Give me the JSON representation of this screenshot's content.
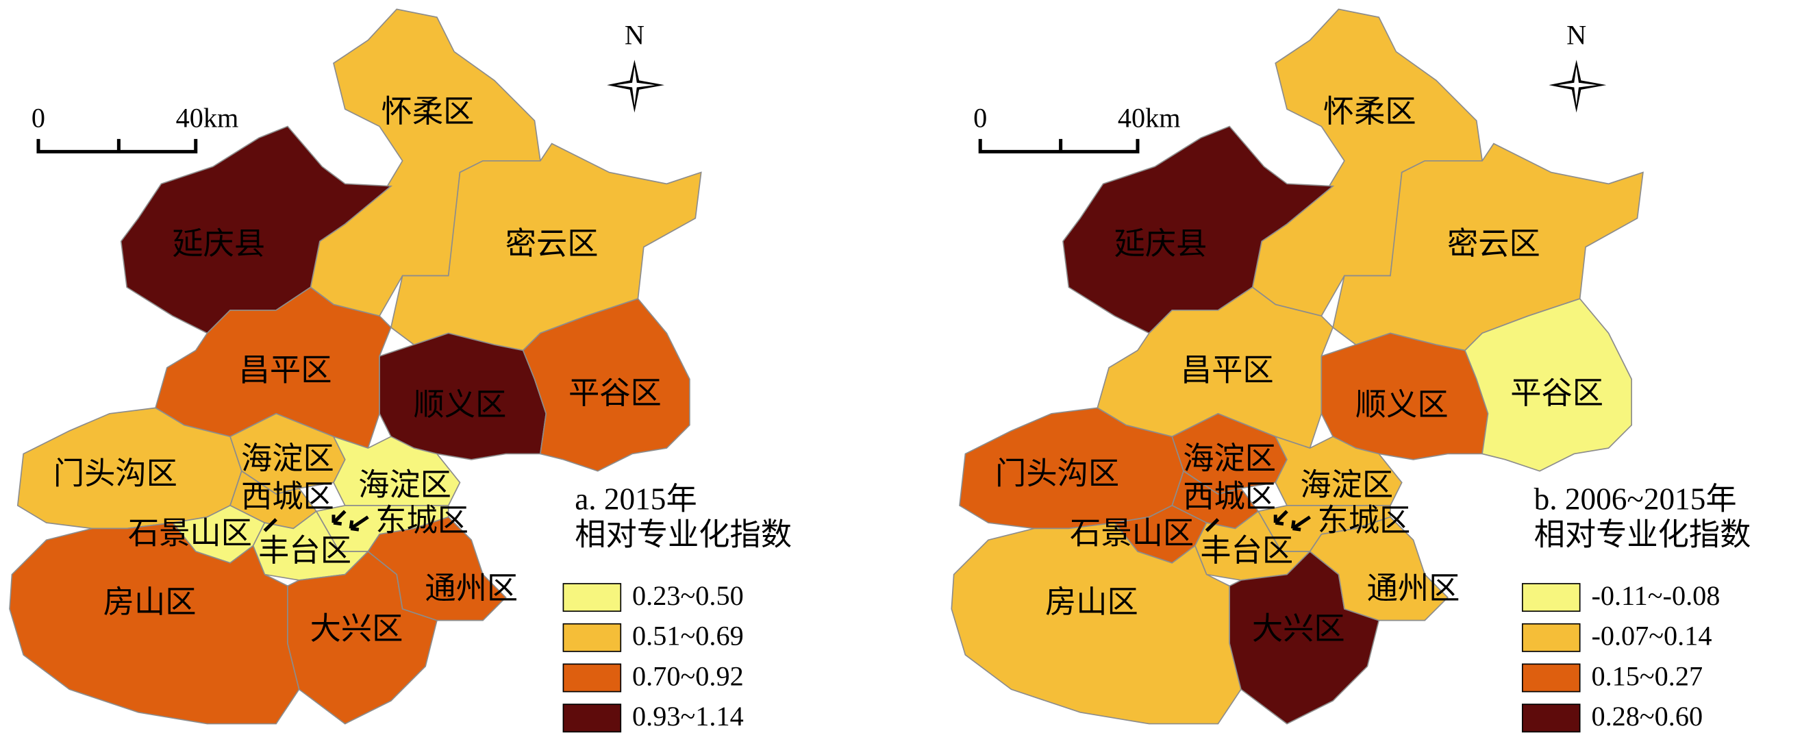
{
  "maps": [
    {
      "scale_bar": {
        "start": "0",
        "end": "40km"
      },
      "north": "N",
      "districts": [
        {
          "label": "怀柔区",
          "color": "#F5BE38"
        },
        {
          "label": "延庆县",
          "color": "#5E0B0B"
        },
        {
          "label": "密云区",
          "color": "#F5BE38"
        },
        {
          "label": "昌平区",
          "color": "#DE5F0F"
        },
        {
          "label": "顺义区",
          "color": "#5E0B0B"
        },
        {
          "label": "平谷区",
          "color": "#DE5F0F"
        },
        {
          "label": "门头沟区",
          "color": "#F5BE38"
        },
        {
          "label": "海淀区",
          "color": "#F5BE38"
        },
        {
          "label": "海淀区",
          "color": "#F7F67E"
        },
        {
          "label": "西城区",
          "color": "#F5BE38"
        },
        {
          "label": "东城区",
          "color": "#F7F67E"
        },
        {
          "label": "石景山区",
          "color": "#F7F67E"
        },
        {
          "label": "丰台区",
          "color": "#F7F67E"
        },
        {
          "label": "房山区",
          "color": "#DE5F0F"
        },
        {
          "label": "大兴区",
          "color": "#DE5F0F"
        },
        {
          "label": "通州区",
          "color": "#DE5F0F"
        }
      ],
      "legend": {
        "title": [
          "a. 2015年",
          "相对专业化指数"
        ],
        "items": [
          {
            "label": "0.23~0.50",
            "color": "#F7F67E"
          },
          {
            "label": "0.51~0.69",
            "color": "#F5BE38"
          },
          {
            "label": "0.70~0.92",
            "color": "#DE5F0F"
          },
          {
            "label": "0.93~1.14",
            "color": "#5E0B0B"
          }
        ]
      }
    },
    {
      "scale_bar": {
        "start": "0",
        "end": "40km"
      },
      "north": "N",
      "districts": [
        {
          "label": "怀柔区",
          "color": "#F5BE38"
        },
        {
          "label": "延庆县",
          "color": "#5E0B0B"
        },
        {
          "label": "密云区",
          "color": "#F5BE38"
        },
        {
          "label": "昌平区",
          "color": "#F5BE38"
        },
        {
          "label": "顺义区",
          "color": "#DE5F0F"
        },
        {
          "label": "平谷区",
          "color": "#F7F67E"
        },
        {
          "label": "门头沟区",
          "color": "#DE5F0F"
        },
        {
          "label": "海淀区",
          "color": "#DE5F0F"
        },
        {
          "label": "海淀区",
          "color": "#F5BE38"
        },
        {
          "label": "西城区",
          "color": "#DE5F0F"
        },
        {
          "label": "东城区",
          "color": "#F5BE38"
        },
        {
          "label": "石景山区",
          "color": "#DE5F0F"
        },
        {
          "label": "丰台区",
          "color": "#F5BE38"
        },
        {
          "label": "房山区",
          "color": "#F5BE38"
        },
        {
          "label": "大兴区",
          "color": "#5E0B0B"
        },
        {
          "label": "通州区",
          "color": "#F5BE38"
        }
      ],
      "legend": {
        "title": [
          "b. 2006~2015年",
          "相对专业化指数"
        ],
        "items": [
          {
            "label": "-0.11~-0.08",
            "color": "#F7F67E"
          },
          {
            "label": "-0.07~0.14",
            "color": "#F5BE38"
          },
          {
            "label": "0.15~0.27",
            "color": "#DE5F0F"
          },
          {
            "label": "0.28~0.60",
            "color": "#5E0B0B"
          }
        ]
      }
    }
  ]
}
